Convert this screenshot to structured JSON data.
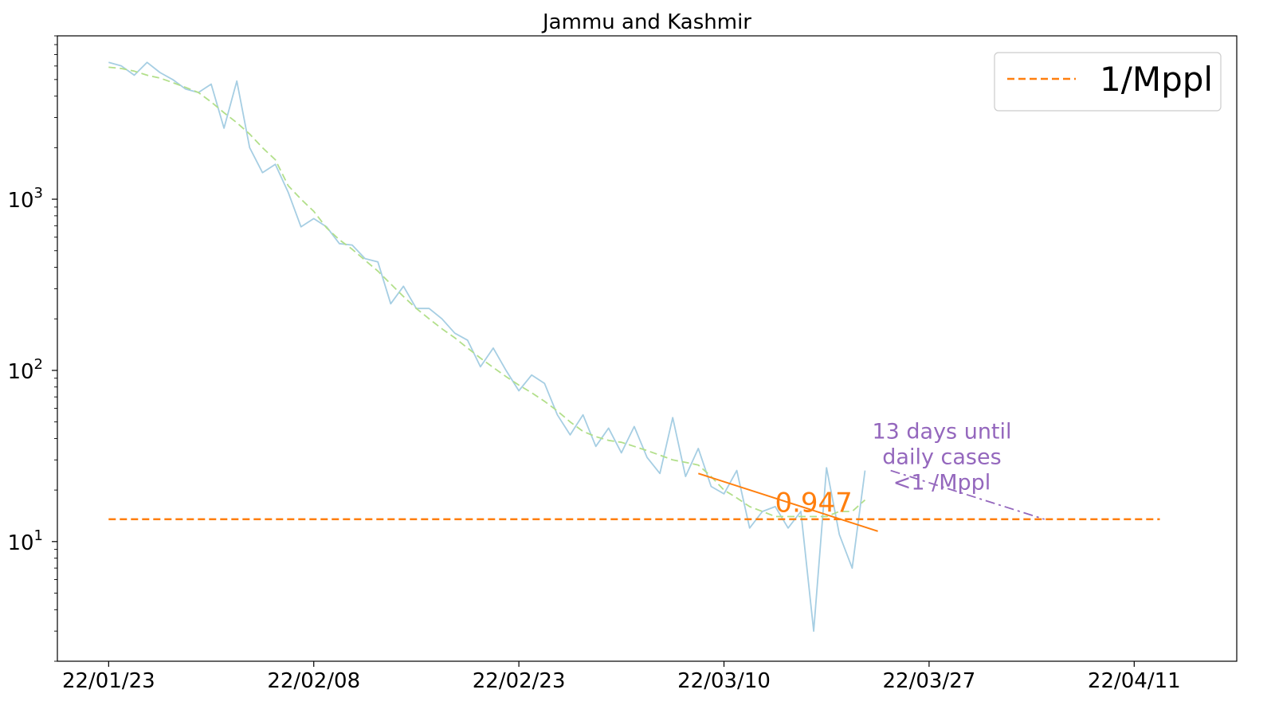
{
  "chart_data": {
    "type": "line",
    "title": "Jammu and Kashmir",
    "xlabel": "",
    "ylabel": "",
    "yscale": "log",
    "ylim": [
      2,
      9000
    ],
    "xlim": [
      "2022-01-19",
      "2022-04-21"
    ],
    "x_tick_labels": [
      "22/01/23",
      "22/02/08",
      "22/02/23",
      "22/03/10",
      "22/03/27",
      "22/04/11"
    ],
    "y_tick_labels": [
      {
        "base": "10",
        "exp": "1",
        "value": 10
      },
      {
        "base": "10",
        "exp": "2",
        "value": 100
      },
      {
        "base": "10",
        "exp": "3",
        "value": 1000
      }
    ],
    "grid": false,
    "legend": {
      "position": "top-right",
      "entries": [
        {
          "label": "1/Mppl",
          "color": "#ff7f0e",
          "style": "dashed"
        }
      ]
    },
    "series": [
      {
        "style": "solid",
        "color": "#a6cee3",
        "start_date": "2022-01-23",
        "values": [
          6300,
          6000,
          5300,
          6300,
          5500,
          5000,
          4400,
          4200,
          4700,
          2600,
          4900,
          2000,
          1430,
          1600,
          1100,
          690,
          770,
          690,
          550,
          540,
          450,
          430,
          245,
          310,
          230,
          230,
          200,
          165,
          150,
          105,
          135,
          100,
          76,
          94,
          84,
          55,
          42,
          55,
          36,
          46,
          33,
          47,
          31,
          25,
          53,
          24,
          35,
          21,
          19,
          26,
          12,
          15,
          16,
          12,
          15,
          3,
          27,
          11,
          7,
          26
        ]
      },
      {
        "style": "dashed",
        "color": "#b2df8a",
        "start_date": "2022-01-23",
        "values": [
          5900,
          5800,
          5600,
          5300,
          5100,
          4800,
          4500,
          4200,
          3700,
          3200,
          2800,
          2400,
          2000,
          1700,
          1200,
          1000,
          850,
          680,
          580,
          510,
          440,
          380,
          320,
          270,
          230,
          200,
          175,
          155,
          135,
          118,
          104,
          92,
          82,
          74,
          66,
          58,
          50,
          44,
          41,
          39,
          38,
          36,
          34,
          32,
          30,
          29,
          28,
          24,
          20,
          18,
          16,
          15,
          14,
          14,
          14,
          14,
          14,
          15,
          15,
          17.5
        ]
      },
      {
        "name": "1/Mppl",
        "style": "dashed",
        "color": "#ff7f0e",
        "x": [
          "2022-01-23",
          "2022-04-15"
        ],
        "values": [
          13.5,
          13.5
        ]
      },
      {
        "style": "solid",
        "color": "#ff7f0e",
        "x": [
          "2022-03-10",
          "2022-03-24"
        ],
        "values": [
          25,
          11.5
        ]
      },
      {
        "style": "dashdot",
        "color": "#9467bd",
        "x": [
          "2022-03-25",
          "2022-04-06"
        ],
        "values": [
          26,
          13.5
        ]
      }
    ],
    "annotations": [
      {
        "text": "0.947",
        "color": "#ff7f0e",
        "x": "2022-03-19",
        "y": 17
      },
      {
        "lines": [
          "13 days until",
          "daily cases",
          "<1 /Mppl"
        ],
        "color": "#9467bd",
        "x": "2022-03-29",
        "y": 40
      }
    ]
  }
}
